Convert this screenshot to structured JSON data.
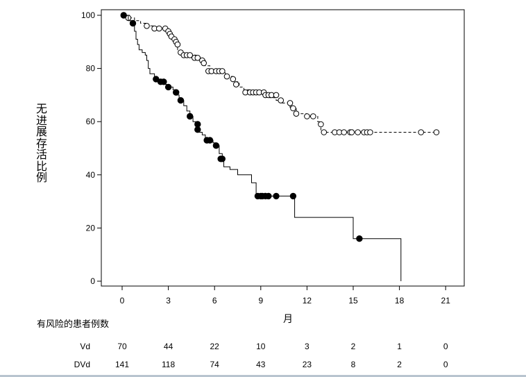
{
  "chart_data": {
    "type": "line",
    "ylabel": "无进展存活比例",
    "xlabel": "月",
    "xlim": [
      0,
      21
    ],
    "ylim": [
      0,
      100
    ],
    "xticks": [
      0,
      3,
      6,
      9,
      12,
      15,
      18,
      21
    ],
    "yticks": [
      0,
      20,
      40,
      60,
      80,
      100
    ],
    "grid": false,
    "series": [
      {
        "name": "DVd",
        "line_style": "dashed",
        "marker": "open-circle",
        "steps": [
          [
            0,
            100
          ],
          [
            0.5,
            99
          ],
          [
            0.8,
            98
          ],
          [
            1.2,
            97
          ],
          [
            1.6,
            96
          ],
          [
            2.0,
            95
          ],
          [
            2.5,
            95
          ],
          [
            2.7,
            94
          ],
          [
            2.9,
            93
          ],
          [
            3.1,
            92
          ],
          [
            3.2,
            91
          ],
          [
            3.4,
            90
          ],
          [
            3.5,
            89
          ],
          [
            3.6,
            87
          ],
          [
            3.7,
            86
          ],
          [
            3.8,
            85
          ],
          [
            4.3,
            85
          ],
          [
            4.8,
            84
          ],
          [
            5.1,
            83
          ],
          [
            5.4,
            81
          ],
          [
            5.7,
            79
          ],
          [
            6.3,
            79
          ],
          [
            6.7,
            77
          ],
          [
            7.2,
            75
          ],
          [
            7.6,
            73
          ],
          [
            7.9,
            72
          ],
          [
            8.3,
            71
          ],
          [
            9.3,
            70
          ],
          [
            9.6,
            69
          ],
          [
            10.0,
            68
          ],
          [
            10.4,
            67
          ],
          [
            10.9,
            65
          ],
          [
            11.3,
            63
          ],
          [
            12.0,
            62
          ],
          [
            12.7,
            60
          ],
          [
            12.9,
            56
          ],
          [
            20.5,
            56
          ]
        ],
        "censored": [
          [
            0.4,
            99
          ],
          [
            1.6,
            96
          ],
          [
            2.1,
            95
          ],
          [
            2.4,
            95
          ],
          [
            2.8,
            95
          ],
          [
            3.0,
            94
          ],
          [
            3.1,
            93
          ],
          [
            3.2,
            92
          ],
          [
            3.4,
            91
          ],
          [
            3.5,
            90
          ],
          [
            3.6,
            89
          ],
          [
            3.8,
            86
          ],
          [
            4.0,
            85
          ],
          [
            4.2,
            85
          ],
          [
            4.4,
            85
          ],
          [
            4.7,
            84
          ],
          [
            4.9,
            84
          ],
          [
            5.2,
            83
          ],
          [
            5.3,
            82
          ],
          [
            5.6,
            79
          ],
          [
            5.8,
            79
          ],
          [
            6.1,
            79
          ],
          [
            6.3,
            79
          ],
          [
            6.5,
            79
          ],
          [
            6.8,
            77
          ],
          [
            7.2,
            76
          ],
          [
            7.4,
            74
          ],
          [
            8.0,
            71
          ],
          [
            8.3,
            71
          ],
          [
            8.5,
            71
          ],
          [
            8.7,
            71
          ],
          [
            8.9,
            71
          ],
          [
            9.2,
            71
          ],
          [
            9.3,
            70
          ],
          [
            9.5,
            70
          ],
          [
            9.7,
            70
          ],
          [
            10.0,
            70
          ],
          [
            10.3,
            68
          ],
          [
            10.9,
            67
          ],
          [
            11.1,
            65
          ],
          [
            11.3,
            63
          ],
          [
            12.0,
            62
          ],
          [
            12.4,
            62
          ],
          [
            12.9,
            59
          ],
          [
            13.1,
            56
          ],
          [
            13.8,
            56
          ],
          [
            14.1,
            56
          ],
          [
            14.4,
            56
          ],
          [
            14.8,
            56
          ],
          [
            14.9,
            56
          ],
          [
            15.3,
            56
          ],
          [
            15.7,
            56
          ],
          [
            15.9,
            56
          ],
          [
            16.1,
            56
          ],
          [
            19.4,
            56
          ],
          [
            20.4,
            56
          ]
        ]
      },
      {
        "name": "Vd",
        "line_style": "solid",
        "marker": "filled-circle",
        "steps": [
          [
            0,
            100
          ],
          [
            0.4,
            98
          ],
          [
            0.7,
            97
          ],
          [
            0.8,
            94
          ],
          [
            0.9,
            91
          ],
          [
            1.0,
            89
          ],
          [
            1.1,
            87
          ],
          [
            1.3,
            86
          ],
          [
            1.5,
            85
          ],
          [
            1.6,
            83
          ],
          [
            1.7,
            80
          ],
          [
            1.8,
            78
          ],
          [
            2.1,
            76
          ],
          [
            2.3,
            75
          ],
          [
            2.7,
            74
          ],
          [
            2.9,
            73
          ],
          [
            3.3,
            72
          ],
          [
            3.5,
            70
          ],
          [
            3.7,
            68
          ],
          [
            4.0,
            66
          ],
          [
            4.2,
            64
          ],
          [
            4.4,
            62
          ],
          [
            4.6,
            60
          ],
          [
            4.8,
            58
          ],
          [
            5.0,
            56
          ],
          [
            5.2,
            55
          ],
          [
            5.4,
            53
          ],
          [
            5.8,
            53
          ],
          [
            5.9,
            52
          ],
          [
            6.1,
            51
          ],
          [
            6.3,
            48
          ],
          [
            6.5,
            46
          ],
          [
            6.6,
            43
          ],
          [
            7.0,
            42
          ],
          [
            7.5,
            40
          ],
          [
            8.4,
            37
          ],
          [
            8.7,
            32
          ],
          [
            11.1,
            32
          ],
          [
            11.2,
            24
          ],
          [
            14.9,
            24
          ],
          [
            15.0,
            16
          ],
          [
            18.1,
            16
          ],
          [
            18.1,
            0
          ]
        ],
        "censored": [
          [
            0.1,
            100
          ],
          [
            0.7,
            97
          ],
          [
            2.2,
            76
          ],
          [
            2.5,
            75
          ],
          [
            2.7,
            75
          ],
          [
            3.0,
            73
          ],
          [
            3.5,
            71
          ],
          [
            3.8,
            68
          ],
          [
            4.4,
            62
          ],
          [
            4.9,
            59
          ],
          [
            4.9,
            57
          ],
          [
            5.5,
            53
          ],
          [
            5.7,
            53
          ],
          [
            6.1,
            51
          ],
          [
            6.4,
            46
          ],
          [
            6.5,
            46
          ],
          [
            8.8,
            32
          ],
          [
            9.0,
            32
          ],
          [
            9.1,
            32
          ],
          [
            9.3,
            32
          ],
          [
            9.5,
            32
          ],
          [
            10.0,
            32
          ],
          [
            11.1,
            32
          ],
          [
            15.4,
            16
          ]
        ]
      }
    ]
  },
  "risk_table": {
    "title": "有风险的患者例数",
    "time_points": [
      0,
      3,
      6,
      9,
      12,
      15,
      18,
      21
    ],
    "rows": [
      {
        "label": "Vd",
        "values": [
          "70",
          "44",
          "22",
          "10",
          "3",
          "2",
          "1",
          "0"
        ]
      },
      {
        "label": "DVd",
        "values": [
          "141",
          "118",
          "74",
          "43",
          "23",
          "8",
          "2",
          "0"
        ]
      }
    ]
  }
}
